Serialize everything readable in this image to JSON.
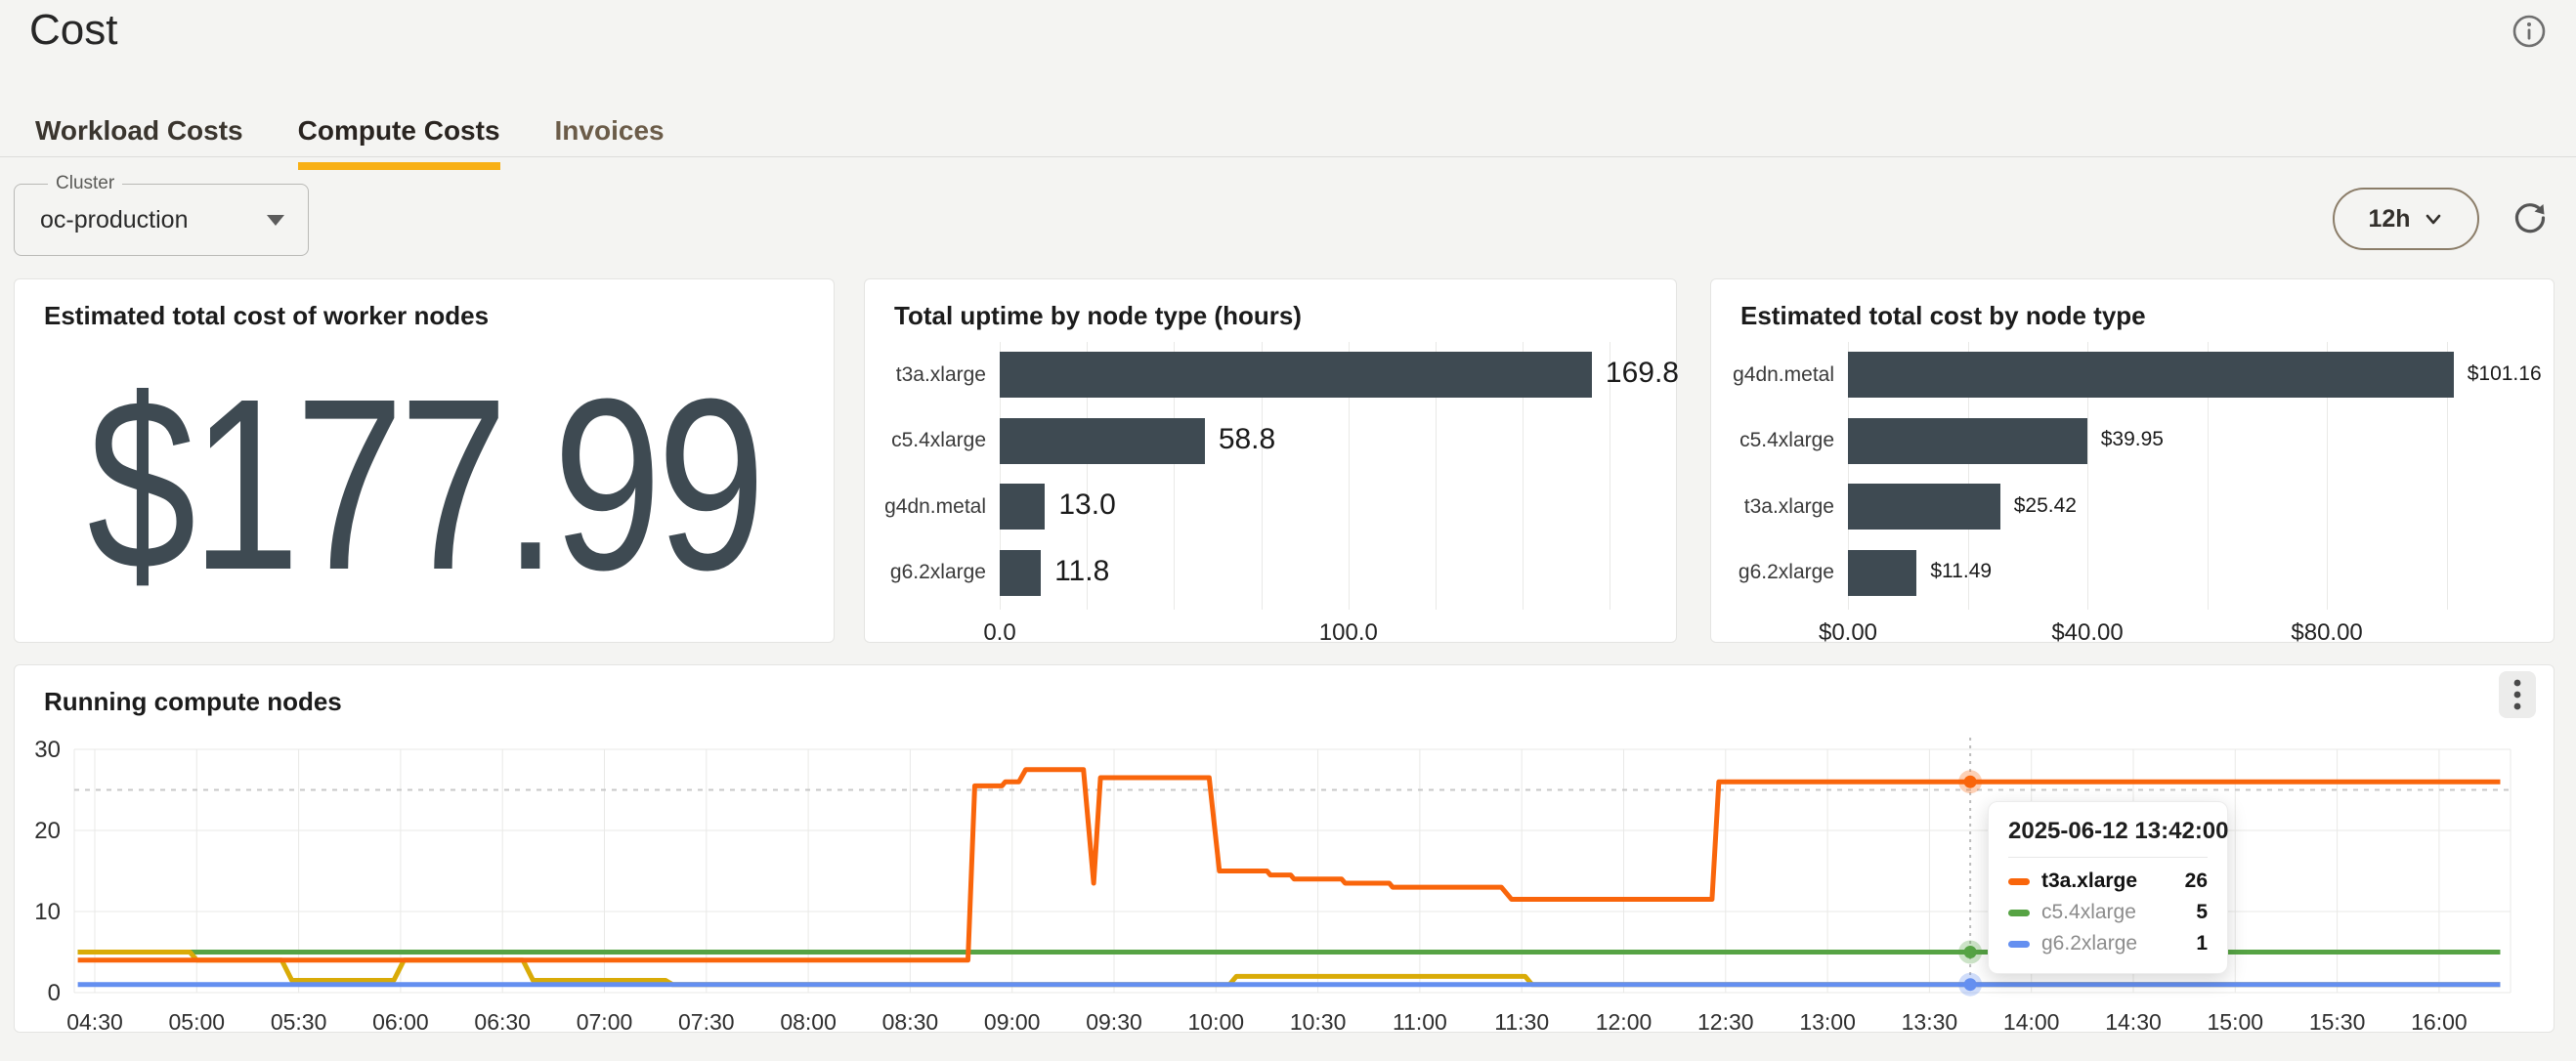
{
  "header": {
    "title": "Cost"
  },
  "tabs": [
    {
      "label": "Workload Costs",
      "active": false
    },
    {
      "label": "Compute Costs",
      "active": true
    },
    {
      "label": "Invoices",
      "active": false
    }
  ],
  "filters": {
    "cluster_label": "Cluster",
    "cluster_value": "oc-production",
    "time_range": "12h"
  },
  "stat_panel": {
    "title": "Estimated total cost of worker nodes",
    "value": "$177.99"
  },
  "colors": {
    "accent_tab_underline": "#f8b015",
    "bar": "#3e4a52",
    "t3a_xlarge": "#f9650b",
    "c5_4xlarge": "#56a344",
    "g4dn_metal": "#d9ab07",
    "g6_2xlarge": "#648ff0",
    "grid": "#e9e9e7",
    "dashed_reference": "#c8c8c8"
  },
  "chart_data": [
    {
      "id": "uptime_by_node_type",
      "type": "bar",
      "orientation": "horizontal",
      "title": "Total uptime by node type (hours)",
      "categories": [
        "t3a.xlarge",
        "c5.4xlarge",
        "g4dn.metal",
        "g6.2xlarge"
      ],
      "values": [
        169.8,
        58.8,
        13.0,
        11.8
      ],
      "value_labels": [
        "169.8",
        "58.8",
        "13.0",
        "11.8"
      ],
      "xlim": [
        0,
        190
      ],
      "grid_interval": 25,
      "ticks": [
        {
          "value": 0,
          "label": "0.0"
        },
        {
          "value": 100,
          "label": "100.0"
        }
      ],
      "value_label_size": 30
    },
    {
      "id": "cost_by_node_type",
      "type": "bar",
      "orientation": "horizontal",
      "title": "Estimated total cost by node type",
      "categories": [
        "g4dn.metal",
        "c5.4xlarge",
        "t3a.xlarge",
        "g6.2xlarge"
      ],
      "values": [
        101.16,
        39.95,
        25.42,
        11.49
      ],
      "value_labels": [
        "$101.16",
        "$39.95",
        "$25.42",
        "$11.49"
      ],
      "xlim": [
        0,
        111
      ],
      "grid_interval": 20,
      "ticks": [
        {
          "value": 0,
          "label": "$0.00"
        },
        {
          "value": 40,
          "label": "$40.00"
        },
        {
          "value": 80,
          "label": "$80.00"
        }
      ],
      "value_label_size": 21
    },
    {
      "id": "running_compute_nodes",
      "type": "line",
      "title": "Running compute nodes",
      "ylim": [
        0,
        30
      ],
      "yticks": [
        0,
        10,
        20,
        30
      ],
      "dashed_reference_y": 25,
      "x_domain_minutes": [
        265,
        978
      ],
      "xticks": [
        "04:30",
        "05:00",
        "05:30",
        "06:00",
        "06:30",
        "07:00",
        "07:30",
        "08:00",
        "08:30",
        "09:00",
        "09:30",
        "10:00",
        "10:30",
        "11:00",
        "11:30",
        "12:00",
        "12:30",
        "13:00",
        "13:30",
        "14:00",
        "14:30",
        "15:00",
        "15:30",
        "16:00"
      ],
      "series": [
        {
          "name": "c5.4xlarge",
          "color": "#56a344",
          "points": [
            [
              265,
              5
            ],
            [
              978,
              5
            ]
          ]
        },
        {
          "name": "g4dn.metal",
          "color": "#d9ab07",
          "points": [
            [
              265,
              5
            ],
            [
              298,
              5
            ],
            [
              300,
              4
            ],
            [
              325,
              4
            ],
            [
              328,
              1.5
            ],
            [
              358,
              1.5
            ],
            [
              361,
              4
            ],
            [
              396,
              4
            ],
            [
              399,
              1.5
            ],
            [
              438,
              1.5
            ],
            [
              440,
              1
            ],
            [
              604,
              1
            ],
            [
              606,
              2
            ],
            [
              691,
              2
            ],
            [
              693,
              1
            ],
            [
              978,
              1
            ]
          ]
        },
        {
          "name": "g6.2xlarge",
          "color": "#648ff0",
          "points": [
            [
              265,
              1
            ],
            [
              978,
              1
            ]
          ]
        },
        {
          "name": "t3a.xlarge",
          "color": "#f9650b",
          "points": [
            [
              265,
              4
            ],
            [
              527,
              4
            ],
            [
              529,
              25.5
            ],
            [
              537,
              25.5
            ],
            [
              538,
              26
            ],
            [
              542,
              26
            ],
            [
              544,
              27.5
            ],
            [
              561,
              27.5
            ],
            [
              564,
              13.5
            ],
            [
              566,
              26.5
            ],
            [
              598,
              26.5
            ],
            [
              601,
              15
            ],
            [
              615,
              15
            ],
            [
              616,
              14.5
            ],
            [
              622,
              14.5
            ],
            [
              623,
              14
            ],
            [
              637,
              14
            ],
            [
              638,
              13.5
            ],
            [
              651,
              13.5
            ],
            [
              652,
              13
            ],
            [
              684,
              13
            ],
            [
              687,
              11.5
            ],
            [
              746,
              11.5
            ],
            [
              748,
              26
            ],
            [
              978,
              26
            ]
          ]
        }
      ],
      "hover": {
        "minute": 822,
        "timestamp": "2025-06-12 13:42:00",
        "rows": [
          {
            "label": "t3a.xlarge",
            "value": "26",
            "color": "#f9650b",
            "emphasis": true
          },
          {
            "label": "c5.4xlarge",
            "value": "5",
            "color": "#56a344",
            "emphasis": false
          },
          {
            "label": "g6.2xlarge",
            "value": "1",
            "color": "#648ff0",
            "emphasis": false
          }
        ]
      }
    }
  ]
}
